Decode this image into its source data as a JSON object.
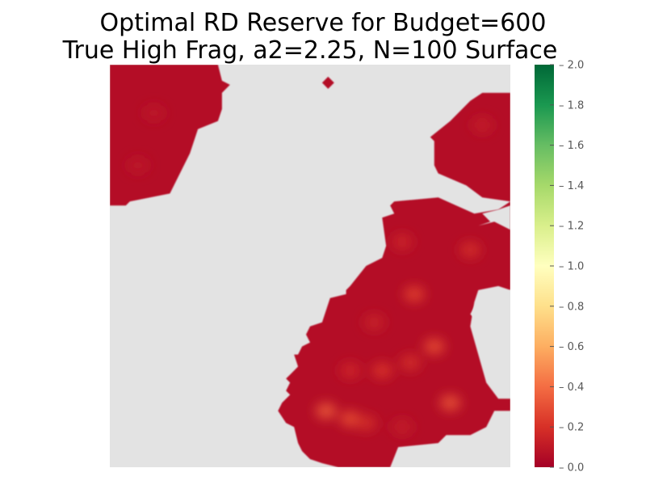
{
  "chart_data": {
    "type": "heatmap",
    "title": "Optimal RD Reserve for Budget=600",
    "subtitle": "True High Frag, a2=2.25, N=100 Surface",
    "colormap": "RdYlGn",
    "colormap_stops": [
      "#a50026",
      "#d73027",
      "#f46d43",
      "#fdae61",
      "#fee08b",
      "#ffffbf",
      "#d9ef8b",
      "#a6d96a",
      "#66bd63",
      "#1a9850",
      "#006837"
    ],
    "unselected_color": "#e3e3e3",
    "grid_size": 100,
    "typical_value_range": [
      0.0,
      0.3
    ],
    "colorbar": {
      "range": [
        0.0,
        2.0
      ],
      "ticks": [
        0.0,
        0.2,
        0.4,
        0.6,
        0.8,
        1.0,
        1.2,
        1.4,
        1.6,
        1.8,
        2.0
      ],
      "tick_labels": [
        "0.0",
        "0.2",
        "0.4",
        "0.6",
        "0.8",
        "1.0",
        "1.2",
        "1.4",
        "1.6",
        "1.8",
        "2.0"
      ]
    },
    "reserve_regions": [
      {
        "name": "top-left patch",
        "polygon": [
          [
            0,
            0
          ],
          [
            27,
            0
          ],
          [
            28,
            4
          ],
          [
            30,
            5
          ],
          [
            28,
            7
          ],
          [
            28,
            11
          ],
          [
            27,
            14
          ],
          [
            22,
            16
          ],
          [
            20,
            22
          ],
          [
            18,
            26
          ],
          [
            15,
            32
          ],
          [
            5,
            34
          ],
          [
            4,
            35
          ],
          [
            0,
            35
          ]
        ]
      },
      {
        "name": "top-right patch",
        "polygon": [
          [
            100,
            7
          ],
          [
            93,
            7
          ],
          [
            90,
            9
          ],
          [
            85,
            14
          ],
          [
            80,
            18
          ],
          [
            81,
            19
          ],
          [
            81,
            25
          ],
          [
            82,
            27
          ],
          [
            89,
            30
          ],
          [
            93,
            33
          ],
          [
            100,
            34
          ]
        ]
      },
      {
        "name": "lower-right patch",
        "polygon": [
          [
            100,
            34
          ],
          [
            97,
            36
          ],
          [
            91,
            37
          ],
          [
            82,
            33
          ],
          [
            71,
            34
          ],
          [
            70,
            35
          ],
          [
            71,
            37
          ],
          [
            68,
            38
          ],
          [
            69,
            45
          ],
          [
            68,
            48
          ],
          [
            64,
            50
          ],
          [
            60,
            55
          ],
          [
            59,
            56
          ],
          [
            59,
            57
          ],
          [
            55,
            58
          ],
          [
            53,
            64
          ],
          [
            50,
            65
          ],
          [
            49,
            67
          ],
          [
            50,
            69
          ],
          [
            48,
            70
          ],
          [
            47,
            72
          ],
          [
            46,
            72
          ],
          [
            47,
            75
          ],
          [
            45,
            77
          ],
          [
            44,
            78
          ],
          [
            45,
            79
          ],
          [
            44,
            81
          ],
          [
            45,
            82
          ],
          [
            43,
            84
          ],
          [
            42,
            86
          ],
          [
            44,
            89
          ],
          [
            46,
            90
          ],
          [
            47,
            94
          ],
          [
            48,
            96
          ],
          [
            50,
            98
          ],
          [
            53,
            99
          ],
          [
            57,
            100
          ],
          [
            70,
            100
          ],
          [
            72,
            95
          ],
          [
            82,
            94
          ],
          [
            84,
            92
          ],
          [
            90,
            92
          ],
          [
            94,
            90
          ],
          [
            96,
            86
          ],
          [
            100,
            86
          ],
          [
            100,
            83
          ],
          [
            97,
            83
          ],
          [
            94,
            79
          ],
          [
            90,
            65
          ],
          [
            91,
            59
          ],
          [
            92,
            56
          ],
          [
            97,
            55
          ],
          [
            100,
            56
          ]
        ]
      },
      {
        "name": "isolated cell",
        "polygon": [
          [
            53,
            4.5
          ],
          [
            54.5,
            3
          ],
          [
            56,
            4.5
          ],
          [
            54.5,
            6
          ]
        ]
      }
    ],
    "notch_regions": [
      {
        "name": "right notch",
        "polygon": [
          [
            100,
            35
          ],
          [
            97,
            36
          ],
          [
            93,
            37
          ],
          [
            95,
            39
          ],
          [
            92,
            40
          ],
          [
            96,
            39
          ],
          [
            100,
            41
          ]
        ]
      },
      {
        "name": "right hole",
        "polygon": [
          [
            100,
            56
          ],
          [
            97,
            57
          ],
          [
            92,
            58
          ],
          [
            91,
            60
          ],
          [
            90,
            62
          ],
          [
            92,
            64
          ],
          [
            98,
            65
          ],
          [
            100,
            64
          ]
        ]
      }
    ],
    "hotspots": [
      {
        "x": 11,
        "y": 12,
        "value": 0.1
      },
      {
        "x": 7,
        "y": 25,
        "value": 0.1
      },
      {
        "x": 93,
        "y": 15,
        "value": 0.12
      },
      {
        "x": 73,
        "y": 44,
        "value": 0.15
      },
      {
        "x": 76,
        "y": 57,
        "value": 0.25
      },
      {
        "x": 90,
        "y": 46,
        "value": 0.18
      },
      {
        "x": 66,
        "y": 64,
        "value": 0.14
      },
      {
        "x": 75,
        "y": 74,
        "value": 0.18
      },
      {
        "x": 81,
        "y": 70,
        "value": 0.28
      },
      {
        "x": 68,
        "y": 76,
        "value": 0.2
      },
      {
        "x": 60,
        "y": 76,
        "value": 0.16
      },
      {
        "x": 85,
        "y": 84,
        "value": 0.3
      },
      {
        "x": 54,
        "y": 86,
        "value": 0.32
      },
      {
        "x": 60,
        "y": 88,
        "value": 0.28
      },
      {
        "x": 64,
        "y": 89,
        "value": 0.18
      },
      {
        "x": 73,
        "y": 90,
        "value": 0.12
      }
    ]
  }
}
